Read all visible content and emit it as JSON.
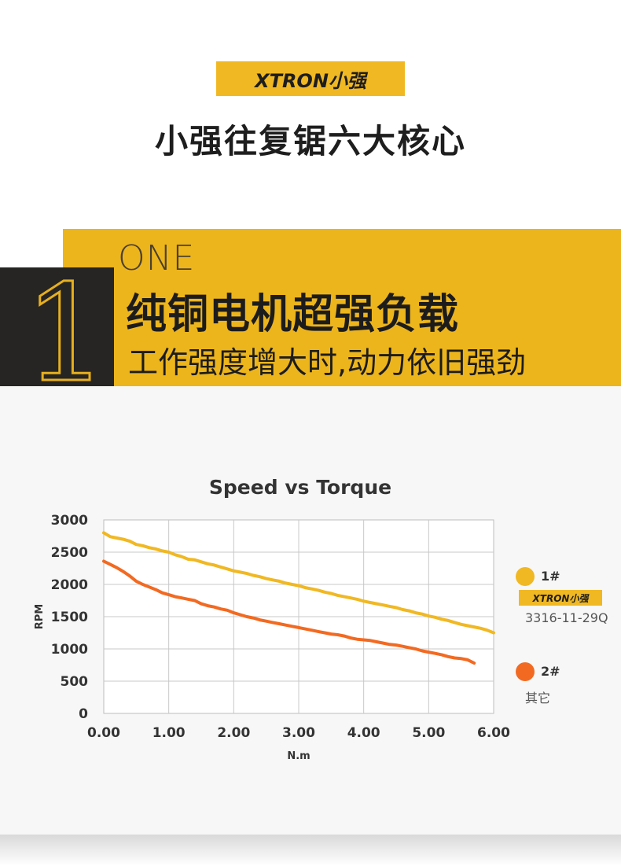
{
  "brand": {
    "logo_text": "XTRON小强",
    "accent": "#f0b823"
  },
  "header": {
    "title": "小强往复锯六大核心"
  },
  "feature": {
    "number": "1",
    "label": "ONE",
    "title": "纯铜电机超强负载",
    "subtitle": "工作强度增大时,动力依旧强劲"
  },
  "chart_data": {
    "type": "line",
    "title": "Speed vs Torque",
    "xlabel": "N.m",
    "ylabel": "RPM",
    "xlim": [
      0,
      6
    ],
    "ylim": [
      0,
      3000
    ],
    "x_ticks": [
      "0.00",
      "1.00",
      "2.00",
      "3.00",
      "4.00",
      "5.00",
      "6.00"
    ],
    "y_ticks": [
      "0",
      "500",
      "1000",
      "1500",
      "2000",
      "2500",
      "3000"
    ],
    "grid": true,
    "legend_position": "right",
    "series": [
      {
        "name": "1#",
        "model": "3316-11-29Q",
        "color": "#f0b823",
        "x": [
          0.0,
          0.1,
          0.2,
          0.3,
          0.4,
          0.5,
          0.6,
          0.7,
          0.8,
          0.9,
          1.0,
          1.1,
          1.2,
          1.3,
          1.4,
          1.5,
          1.6,
          1.7,
          1.8,
          1.9,
          2.0,
          2.1,
          2.2,
          2.3,
          2.4,
          2.5,
          2.6,
          2.7,
          2.8,
          2.9,
          3.0,
          3.1,
          3.2,
          3.3,
          3.4,
          3.5,
          3.6,
          3.7,
          3.8,
          3.9,
          4.0,
          4.1,
          4.2,
          4.3,
          4.4,
          4.5,
          4.6,
          4.7,
          4.8,
          4.9,
          5.0,
          5.1,
          5.2,
          5.3,
          5.4,
          5.5,
          5.6,
          5.7,
          5.8,
          5.9,
          6.0
        ],
        "y": [
          2800,
          2740,
          2720,
          2700,
          2670,
          2620,
          2600,
          2570,
          2550,
          2520,
          2500,
          2460,
          2430,
          2390,
          2380,
          2350,
          2320,
          2300,
          2270,
          2240,
          2210,
          2190,
          2170,
          2140,
          2120,
          2090,
          2070,
          2050,
          2020,
          2000,
          1980,
          1950,
          1930,
          1910,
          1880,
          1860,
          1830,
          1810,
          1790,
          1770,
          1740,
          1720,
          1700,
          1680,
          1660,
          1640,
          1610,
          1590,
          1560,
          1540,
          1510,
          1490,
          1460,
          1440,
          1410,
          1380,
          1360,
          1340,
          1320,
          1290,
          1250
        ]
      },
      {
        "name": "2#",
        "model": "其它",
        "color": "#f26a21",
        "x": [
          0.0,
          0.1,
          0.2,
          0.3,
          0.4,
          0.5,
          0.6,
          0.7,
          0.8,
          0.9,
          1.0,
          1.1,
          1.2,
          1.3,
          1.4,
          1.5,
          1.6,
          1.7,
          1.8,
          1.9,
          2.0,
          2.1,
          2.2,
          2.3,
          2.4,
          2.5,
          2.6,
          2.7,
          2.8,
          2.9,
          3.0,
          3.1,
          3.2,
          3.3,
          3.4,
          3.5,
          3.6,
          3.7,
          3.8,
          3.9,
          4.0,
          4.1,
          4.2,
          4.3,
          4.4,
          4.5,
          4.6,
          4.7,
          4.8,
          4.9,
          5.0,
          5.1,
          5.2,
          5.3,
          5.4,
          5.5,
          5.6,
          5.7
        ],
        "y": [
          2360,
          2310,
          2260,
          2200,
          2130,
          2050,
          2000,
          1960,
          1920,
          1870,
          1840,
          1810,
          1790,
          1770,
          1750,
          1700,
          1670,
          1650,
          1620,
          1600,
          1560,
          1530,
          1500,
          1480,
          1450,
          1430,
          1410,
          1390,
          1370,
          1350,
          1330,
          1310,
          1290,
          1270,
          1250,
          1230,
          1220,
          1200,
          1170,
          1150,
          1140,
          1130,
          1110,
          1090,
          1070,
          1060,
          1040,
          1020,
          1000,
          970,
          950,
          930,
          910,
          880,
          860,
          850,
          830,
          780
        ]
      }
    ]
  }
}
